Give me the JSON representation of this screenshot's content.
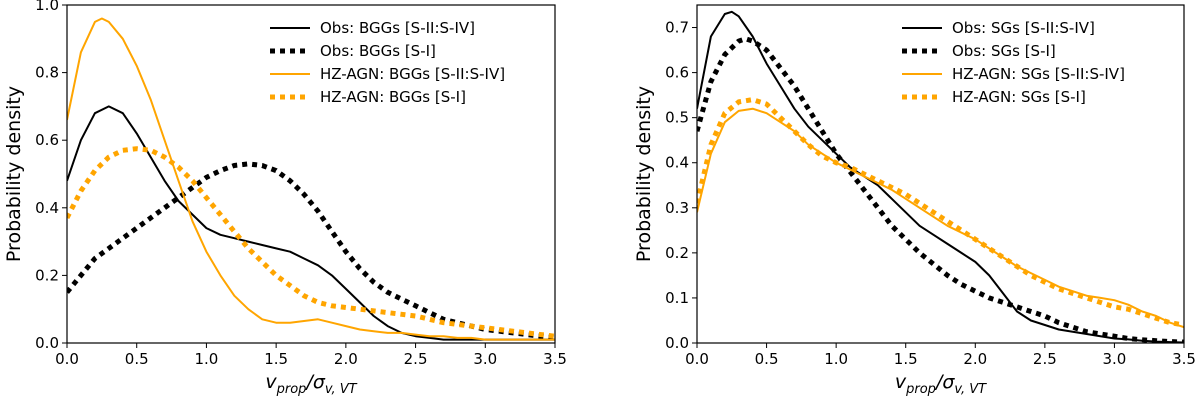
{
  "colors": {
    "obs": "#000000",
    "sim": "#ffa500",
    "axes": "#000000",
    "background": "#ffffff"
  },
  "chart_data": [
    {
      "type": "line",
      "title": "",
      "xlabel": "v_prop / σ_v,VT",
      "xlabel_parts": {
        "main": "v",
        "main_sub": "prop",
        "slash": "/",
        "sigma": "σ",
        "sigma_sub": "v, VT"
      },
      "ylabel": "Probability density",
      "xlim": [
        0,
        3.5
      ],
      "ylim": [
        0,
        1.0
      ],
      "xticks": [
        0.0,
        0.5,
        1.0,
        1.5,
        2.0,
        2.5,
        3.0,
        3.5
      ],
      "xtick_labels": [
        "0.0",
        "0.5",
        "1.0",
        "1.5",
        "2.0",
        "2.5",
        "3.0",
        "3.5"
      ],
      "yticks": [
        0.0,
        0.2,
        0.4,
        0.6,
        0.8,
        1.0
      ],
      "ytick_labels": [
        "0.0",
        "0.2",
        "0.4",
        "0.6",
        "0.8",
        "1.0"
      ],
      "legend_position": "top-right",
      "series": [
        {
          "name": "Obs: BGGs [S-II:S-IV]",
          "color": "#000000",
          "style": "solid",
          "x": [
            0,
            0.1,
            0.2,
            0.3,
            0.4,
            0.5,
            0.6,
            0.7,
            0.8,
            0.9,
            1.0,
            1.1,
            1.2,
            1.3,
            1.4,
            1.5,
            1.6,
            1.7,
            1.8,
            1.9,
            2.0,
            2.1,
            2.2,
            2.3,
            2.4,
            2.5,
            2.6,
            2.7,
            2.8,
            2.9,
            3.0,
            3.1,
            3.2,
            3.3,
            3.4,
            3.5
          ],
          "y": [
            0.48,
            0.6,
            0.68,
            0.7,
            0.68,
            0.62,
            0.55,
            0.48,
            0.42,
            0.38,
            0.34,
            0.32,
            0.31,
            0.3,
            0.29,
            0.28,
            0.27,
            0.25,
            0.23,
            0.2,
            0.16,
            0.12,
            0.08,
            0.05,
            0.03,
            0.02,
            0.015,
            0.01,
            0.01,
            0.01,
            0.01,
            0.01,
            0.01,
            0.01,
            0.01,
            0.01
          ]
        },
        {
          "name": "Obs: BGGs [S-I]",
          "color": "#000000",
          "style": "dotted",
          "x": [
            0,
            0.1,
            0.2,
            0.3,
            0.4,
            0.5,
            0.6,
            0.7,
            0.8,
            0.9,
            1.0,
            1.1,
            1.2,
            1.3,
            1.4,
            1.5,
            1.6,
            1.7,
            1.8,
            1.9,
            2.0,
            2.1,
            2.2,
            2.3,
            2.4,
            2.5,
            2.6,
            2.7,
            2.8,
            2.9,
            3.0,
            3.1,
            3.2,
            3.3,
            3.4,
            3.5
          ],
          "y": [
            0.15,
            0.2,
            0.25,
            0.28,
            0.31,
            0.34,
            0.37,
            0.4,
            0.43,
            0.46,
            0.49,
            0.51,
            0.525,
            0.53,
            0.525,
            0.51,
            0.48,
            0.44,
            0.39,
            0.33,
            0.27,
            0.22,
            0.18,
            0.15,
            0.13,
            0.11,
            0.09,
            0.07,
            0.06,
            0.05,
            0.04,
            0.035,
            0.03,
            0.025,
            0.02,
            0.015
          ]
        },
        {
          "name": "HZ-AGN: BGGs [S-II:S-IV]",
          "color": "#ffa500",
          "style": "solid",
          "x": [
            0,
            0.1,
            0.2,
            0.25,
            0.3,
            0.4,
            0.5,
            0.6,
            0.7,
            0.8,
            0.9,
            1.0,
            1.1,
            1.2,
            1.3,
            1.4,
            1.5,
            1.6,
            1.7,
            1.8,
            1.9,
            2.0,
            2.1,
            2.2,
            2.3,
            2.4,
            2.5,
            2.6,
            2.7,
            2.8,
            2.9,
            3.0,
            3.1,
            3.2,
            3.3,
            3.4,
            3.5
          ],
          "y": [
            0.66,
            0.86,
            0.95,
            0.96,
            0.95,
            0.9,
            0.82,
            0.72,
            0.6,
            0.48,
            0.36,
            0.27,
            0.2,
            0.14,
            0.1,
            0.07,
            0.06,
            0.06,
            0.065,
            0.07,
            0.06,
            0.05,
            0.04,
            0.035,
            0.03,
            0.03,
            0.025,
            0.02,
            0.02,
            0.015,
            0.015,
            0.01,
            0.01,
            0.01,
            0.01,
            0.01,
            0.01
          ]
        },
        {
          "name": "HZ-AGN: BGGs [S-I]",
          "color": "#ffa500",
          "style": "dotted",
          "x": [
            0,
            0.1,
            0.2,
            0.3,
            0.4,
            0.5,
            0.6,
            0.7,
            0.8,
            0.9,
            1.0,
            1.1,
            1.2,
            1.3,
            1.4,
            1.5,
            1.6,
            1.7,
            1.8,
            1.9,
            2.0,
            2.1,
            2.2,
            2.3,
            2.4,
            2.5,
            2.6,
            2.7,
            2.8,
            2.9,
            3.0,
            3.1,
            3.2,
            3.3,
            3.4,
            3.5
          ],
          "y": [
            0.37,
            0.45,
            0.51,
            0.55,
            0.57,
            0.575,
            0.57,
            0.55,
            0.52,
            0.48,
            0.43,
            0.38,
            0.33,
            0.28,
            0.24,
            0.2,
            0.17,
            0.14,
            0.12,
            0.11,
            0.105,
            0.1,
            0.095,
            0.09,
            0.085,
            0.08,
            0.07,
            0.06,
            0.055,
            0.05,
            0.045,
            0.04,
            0.035,
            0.03,
            0.025,
            0.02
          ]
        }
      ]
    },
    {
      "type": "line",
      "title": "",
      "xlabel": "v_prop / σ_v,VT",
      "xlabel_parts": {
        "main": "v",
        "main_sub": "prop",
        "slash": "/",
        "sigma": "σ",
        "sigma_sub": "v, VT"
      },
      "ylabel": "Probability density",
      "xlim": [
        0,
        3.5
      ],
      "ylim": [
        0,
        0.75
      ],
      "xticks": [
        0.0,
        0.5,
        1.0,
        1.5,
        2.0,
        2.5,
        3.0,
        3.5
      ],
      "xtick_labels": [
        "0.0",
        "0.5",
        "1.0",
        "1.5",
        "2.0",
        "2.5",
        "3.0",
        "3.5"
      ],
      "yticks": [
        0.0,
        0.1,
        0.2,
        0.3,
        0.4,
        0.5,
        0.6,
        0.7
      ],
      "ytick_labels": [
        "0.0",
        "0.1",
        "0.2",
        "0.3",
        "0.4",
        "0.5",
        "0.6",
        "0.7"
      ],
      "legend_position": "top-right",
      "series": [
        {
          "name": "Obs: SGs [S-II:S-IV]",
          "color": "#000000",
          "style": "solid",
          "x": [
            0,
            0.1,
            0.2,
            0.25,
            0.3,
            0.4,
            0.5,
            0.6,
            0.7,
            0.8,
            0.9,
            1.0,
            1.1,
            1.2,
            1.3,
            1.4,
            1.5,
            1.6,
            1.7,
            1.8,
            1.9,
            2.0,
            2.1,
            2.2,
            2.3,
            2.4,
            2.5,
            2.6,
            2.7,
            2.8,
            2.9,
            3.0,
            3.1,
            3.2,
            3.3,
            3.4,
            3.5
          ],
          "y": [
            0.52,
            0.68,
            0.73,
            0.735,
            0.725,
            0.68,
            0.62,
            0.57,
            0.52,
            0.48,
            0.45,
            0.42,
            0.39,
            0.37,
            0.35,
            0.32,
            0.29,
            0.26,
            0.24,
            0.22,
            0.2,
            0.18,
            0.15,
            0.11,
            0.07,
            0.05,
            0.04,
            0.03,
            0.025,
            0.02,
            0.015,
            0.01,
            0.008,
            0.005,
            0.003,
            0.002,
            0.001
          ]
        },
        {
          "name": "Obs: SGs [S-I]",
          "color": "#000000",
          "style": "dotted",
          "x": [
            0,
            0.1,
            0.2,
            0.3,
            0.35,
            0.4,
            0.5,
            0.6,
            0.7,
            0.8,
            0.9,
            1.0,
            1.1,
            1.2,
            1.3,
            1.4,
            1.5,
            1.6,
            1.7,
            1.8,
            1.9,
            2.0,
            2.1,
            2.2,
            2.3,
            2.4,
            2.5,
            2.6,
            2.7,
            2.8,
            2.9,
            3.0,
            3.1,
            3.2,
            3.3,
            3.4,
            3.5
          ],
          "y": [
            0.47,
            0.58,
            0.64,
            0.67,
            0.675,
            0.67,
            0.65,
            0.61,
            0.57,
            0.52,
            0.47,
            0.42,
            0.38,
            0.34,
            0.3,
            0.26,
            0.23,
            0.2,
            0.175,
            0.15,
            0.13,
            0.115,
            0.1,
            0.09,
            0.08,
            0.07,
            0.06,
            0.045,
            0.035,
            0.025,
            0.02,
            0.015,
            0.01,
            0.007,
            0.005,
            0.003,
            0.002
          ]
        },
        {
          "name": "HZ-AGN: SGs [S-II:S-IV]",
          "color": "#ffa500",
          "style": "solid",
          "x": [
            0,
            0.1,
            0.2,
            0.3,
            0.4,
            0.5,
            0.6,
            0.7,
            0.8,
            0.9,
            1.0,
            1.1,
            1.2,
            1.3,
            1.4,
            1.5,
            1.6,
            1.7,
            1.8,
            1.9,
            2.0,
            2.1,
            2.2,
            2.3,
            2.4,
            2.5,
            2.6,
            2.7,
            2.8,
            2.9,
            3.0,
            3.1,
            3.2,
            3.3,
            3.4,
            3.5
          ],
          "y": [
            0.29,
            0.42,
            0.49,
            0.515,
            0.52,
            0.51,
            0.49,
            0.47,
            0.44,
            0.42,
            0.4,
            0.385,
            0.37,
            0.355,
            0.34,
            0.32,
            0.3,
            0.28,
            0.26,
            0.245,
            0.23,
            0.21,
            0.19,
            0.17,
            0.155,
            0.14,
            0.125,
            0.115,
            0.105,
            0.1,
            0.095,
            0.085,
            0.07,
            0.06,
            0.045,
            0.035
          ]
        },
        {
          "name": "HZ-AGN: SGs [S-I]",
          "color": "#ffa500",
          "style": "dotted",
          "x": [
            0,
            0.1,
            0.2,
            0.3,
            0.4,
            0.5,
            0.6,
            0.7,
            0.8,
            0.9,
            1.0,
            1.1,
            1.2,
            1.3,
            1.4,
            1.5,
            1.6,
            1.7,
            1.8,
            1.9,
            2.0,
            2.1,
            2.2,
            2.3,
            2.4,
            2.5,
            2.6,
            2.7,
            2.8,
            2.9,
            3.0,
            3.1,
            3.2,
            3.3,
            3.4,
            3.5
          ],
          "y": [
            0.31,
            0.44,
            0.51,
            0.535,
            0.54,
            0.53,
            0.5,
            0.47,
            0.44,
            0.415,
            0.4,
            0.39,
            0.375,
            0.36,
            0.345,
            0.33,
            0.31,
            0.29,
            0.27,
            0.25,
            0.23,
            0.21,
            0.19,
            0.17,
            0.15,
            0.135,
            0.12,
            0.11,
            0.1,
            0.09,
            0.08,
            0.075,
            0.065,
            0.055,
            0.045,
            0.04
          ]
        }
      ]
    }
  ]
}
